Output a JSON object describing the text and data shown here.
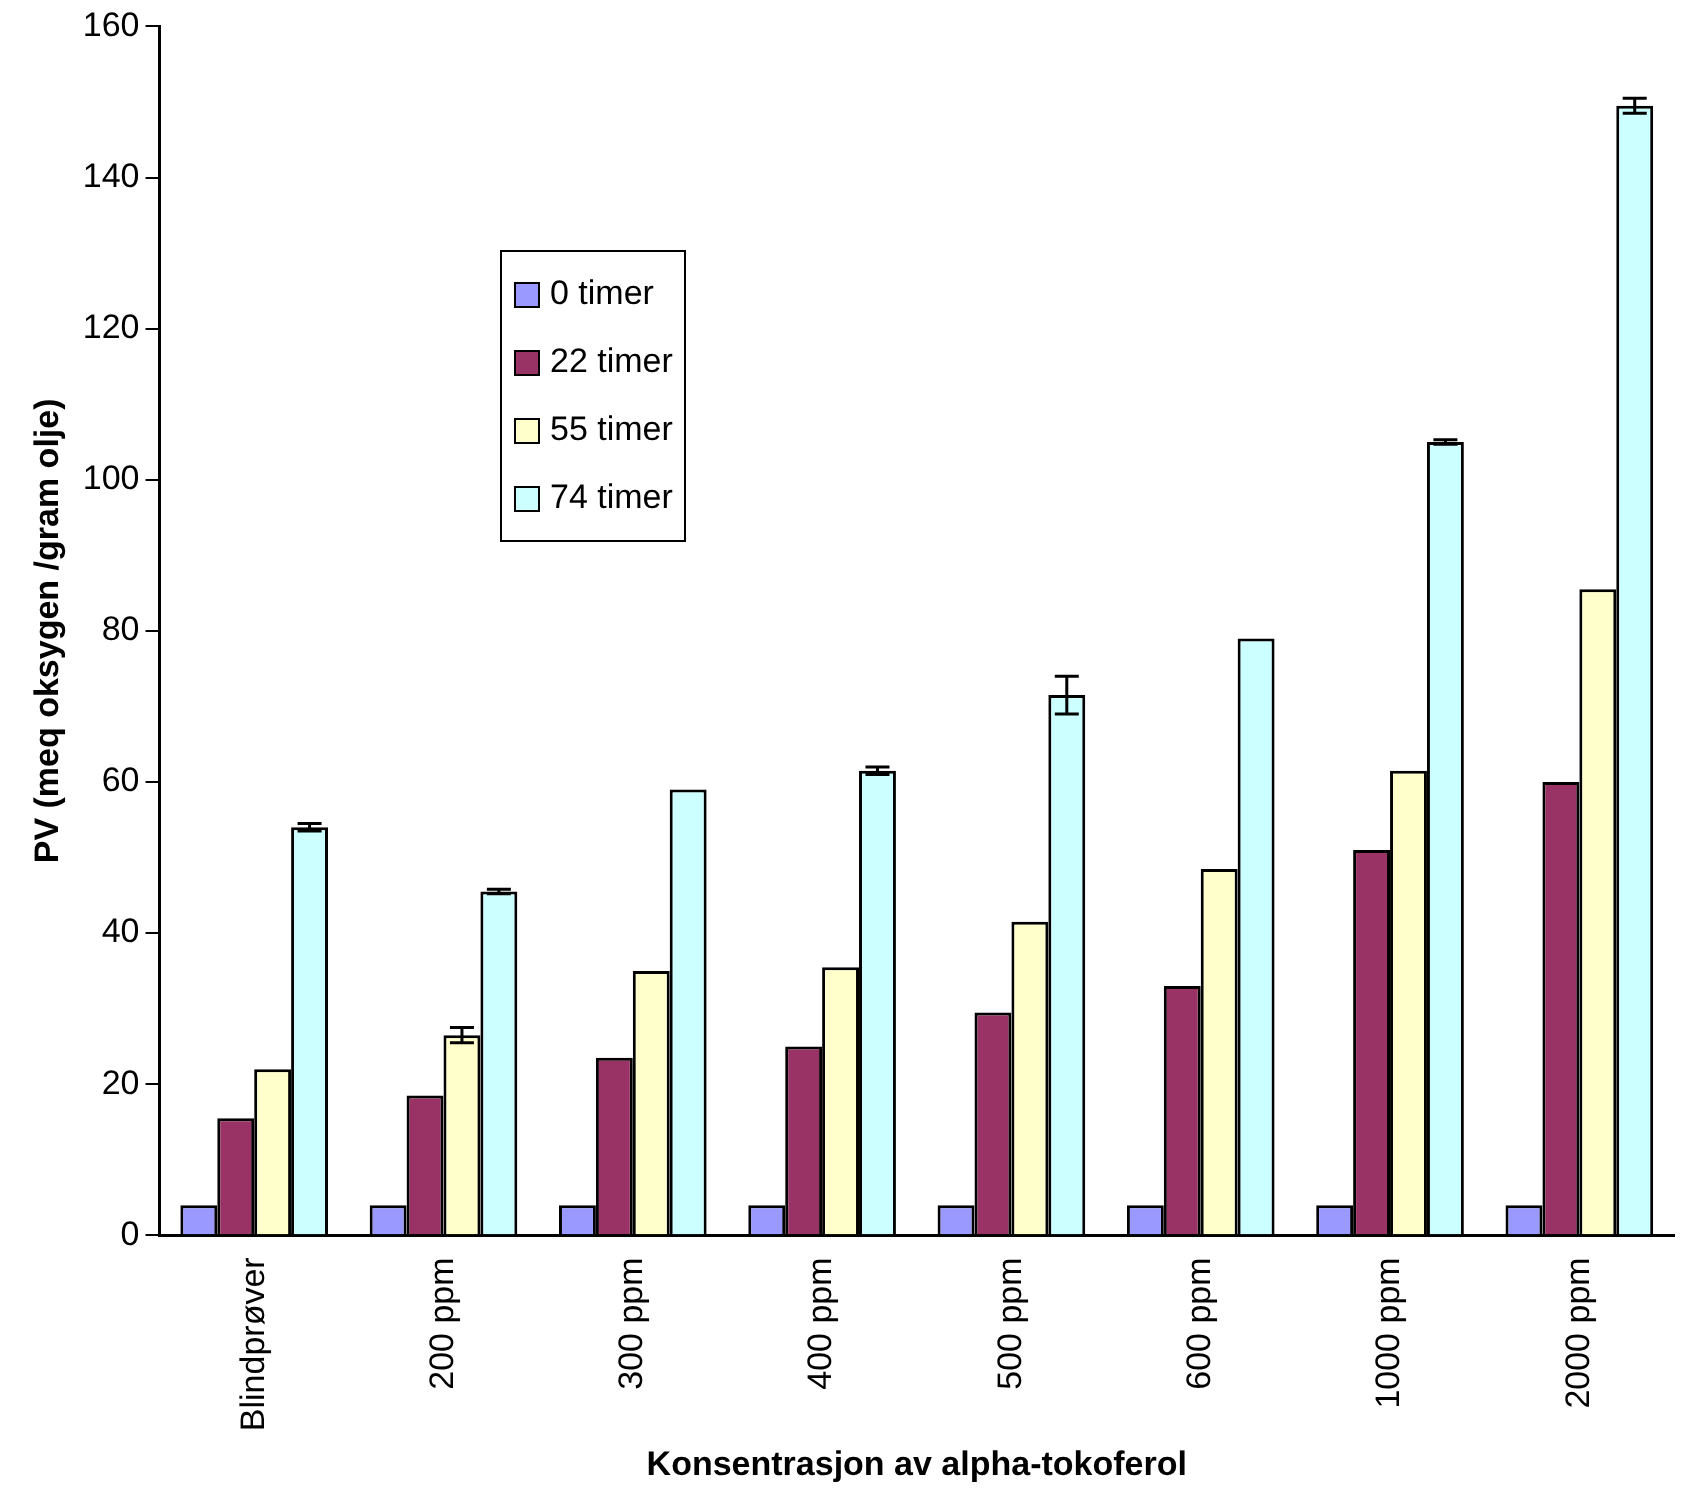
{
  "chart_data": {
    "type": "bar",
    "xlabel": "Konsentrasjon av alpha-tokoferol",
    "ylabel": "PV (meq oksygen /gram olje)",
    "categories": [
      "Blindprøver",
      "200 ppm",
      "300 ppm",
      "400 ppm",
      "500 ppm",
      "600 ppm",
      "1000 ppm",
      "2000 ppm"
    ],
    "series": [
      {
        "name": "0 timer",
        "color": "#9999ff",
        "values": [
          4,
          4,
          4,
          4,
          4,
          4,
          4,
          4
        ]
      },
      {
        "name": "22 timer",
        "color": "#993366",
        "values": [
          15.5,
          18.5,
          23.5,
          25,
          29.5,
          33,
          51,
          60
        ]
      },
      {
        "name": "55 timer",
        "color": "#ffffcc",
        "values": [
          22,
          26.5,
          35,
          35.5,
          41.5,
          48.5,
          61.5,
          85.5
        ],
        "errors": [
          null,
          1,
          null,
          null,
          null,
          null,
          null,
          null
        ]
      },
      {
        "name": "74 timer",
        "color": "#ccffff",
        "values": [
          54,
          45.5,
          59,
          61.5,
          71.5,
          79,
          105,
          149.5
        ],
        "errors": [
          0.5,
          0.3,
          null,
          0.5,
          2.5,
          null,
          0.3,
          1
        ]
      }
    ],
    "ylim": [
      0,
      160
    ],
    "yticks": [
      0,
      20,
      40,
      60,
      80,
      100,
      120,
      140,
      160
    ],
    "grid": false,
    "legend": "top left"
  }
}
